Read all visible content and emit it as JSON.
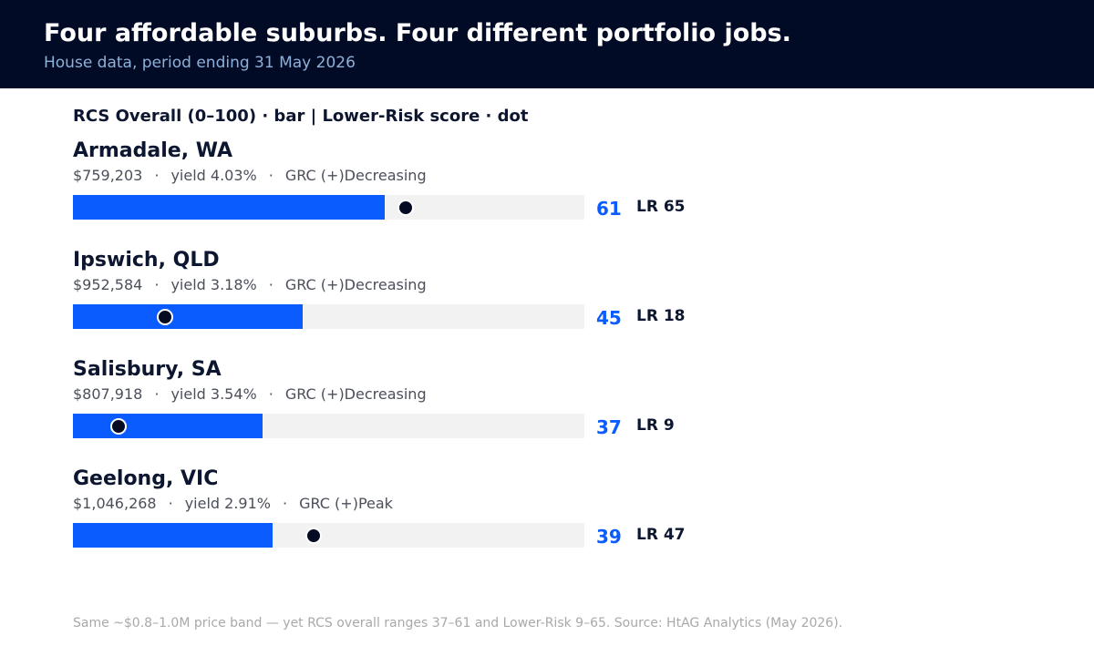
{
  "header": {
    "title": "Four affordable suburbs. Four different portfolio jobs.",
    "subtitle": "House data, period ending 31 May 2026"
  },
  "legend": "RCS Overall (0–100)  ·  bar  |  Lower-Risk score  ·  dot",
  "footnote": "Same ~$0.8–1.0M price band — yet RCS overall ranges 37–61 and Lower-Risk 9–65. Source: HtAG Analytics (May 2026).",
  "colors": {
    "header_bg": "#020b26",
    "bar": "#0a5cff",
    "track": "#f2f2f2",
    "dot": "#050b22",
    "subtitle": "#8fb0d8"
  },
  "chart_data": {
    "type": "bar",
    "orientation": "horizontal",
    "xlim": [
      0,
      100
    ],
    "grid": false,
    "categories": [
      "Armadale, WA",
      "Ipswich, QLD",
      "Salisbury, SA",
      "Geelong, VIC"
    ],
    "series": [
      {
        "name": "RCS Overall (0–100)",
        "mark": "bar",
        "values": [
          61,
          45,
          37,
          39
        ]
      },
      {
        "name": "Lower-Risk score",
        "mark": "dot",
        "values": [
          65,
          18,
          9,
          47
        ]
      }
    ],
    "rows": [
      {
        "name": "Armadale, WA",
        "price": "$759,203",
        "yield": "yield 4.03%",
        "grc": "GRC (+)Decreasing",
        "rcs": 61,
        "rcs_label": "61",
        "lr": 65,
        "lr_label": "LR 65"
      },
      {
        "name": "Ipswich, QLD",
        "price": "$952,584",
        "yield": "yield 3.18%",
        "grc": "GRC (+)Decreasing",
        "rcs": 45,
        "rcs_label": "45",
        "lr": 18,
        "lr_label": "LR 18"
      },
      {
        "name": "Salisbury, SA",
        "price": "$807,918",
        "yield": "yield 3.54%",
        "grc": "GRC (+)Decreasing",
        "rcs": 37,
        "rcs_label": "37",
        "lr": 9,
        "lr_label": "LR 9"
      },
      {
        "name": "Geelong, VIC",
        "price": "$1,046,268",
        "yield": "yield 2.91%",
        "grc": "GRC (+)Peak",
        "rcs": 39,
        "rcs_label": "39",
        "lr": 47,
        "lr_label": "LR 47"
      }
    ]
  }
}
